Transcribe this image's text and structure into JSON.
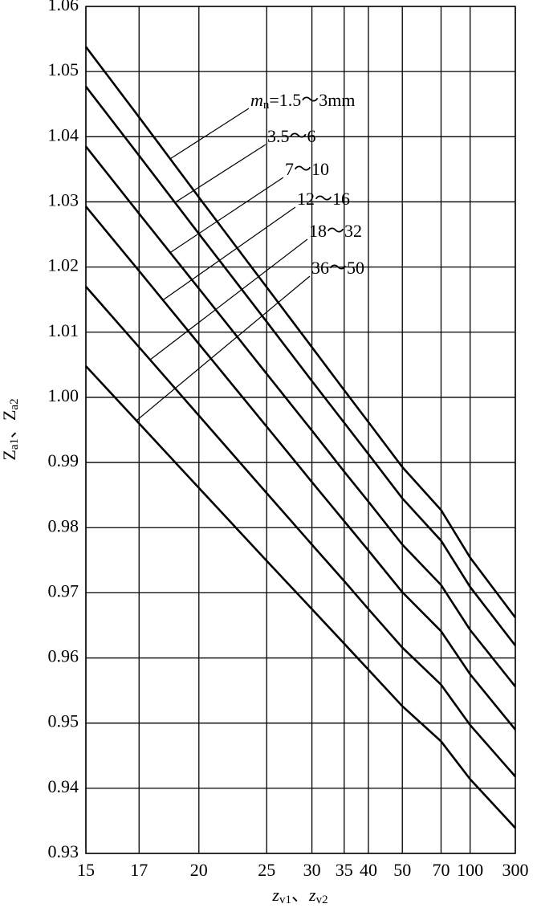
{
  "chart_data": {
    "type": "line",
    "x_scale": "reciprocal",
    "grid": true,
    "color": "#000000",
    "x": [
      15,
      17,
      20,
      25,
      30,
      35,
      40,
      50,
      70,
      100,
      300
    ],
    "xlim": [
      15,
      300
    ],
    "xticks": [
      15,
      17,
      20,
      25,
      30,
      35,
      40,
      50,
      70,
      100,
      300
    ],
    "ylim": [
      0.93,
      1.06
    ],
    "yticks": [
      0.93,
      0.94,
      0.95,
      0.96,
      0.97,
      0.98,
      0.99,
      {
        "value": 1,
        "label": "1.00"
      },
      1.01,
      1.02,
      1.03,
      1.04,
      1.05,
      1.06
    ],
    "x_label": [
      {
        "text": "z",
        "sub": false
      },
      {
        "text": "v1",
        "sub": true
      },
      {
        "text": "、",
        "sub": false
      },
      {
        "text": "z",
        "sub": false
      },
      {
        "text": "v2",
        "sub": true
      }
    ],
    "y_label": [
      {
        "text": "Z",
        "sub": false
      },
      {
        "text": "a1",
        "sub": true
      },
      {
        "text": "、",
        "sub": false
      },
      {
        "text": "Z",
        "sub": false
      },
      {
        "text": "a2",
        "sub": true
      }
    ],
    "label_prefix": {
      "symbol": "m",
      "sub": "n"
    },
    "series": [
      {
        "name": "=1.5～3mm",
        "color": "#000000",
        "values": [
          1.0538,
          1.043,
          1.0307,
          1.0169,
          1.0077,
          1.0011,
          0.9962,
          0.9893,
          0.9827,
          0.9754,
          0.9662
        ]
      },
      {
        "name": "3.5～6",
        "color": "#000000",
        "values": [
          1.0477,
          1.0371,
          1.0251,
          1.0116,
          1.0025,
          0.9961,
          0.9913,
          0.9845,
          0.978,
          0.9709,
          0.9619
        ]
      },
      {
        "name": "7～10",
        "color": "#000000",
        "values": [
          1.0385,
          1.0282,
          1.0167,
          1.0036,
          0.9949,
          0.9886,
          0.984,
          0.9774,
          0.9712,
          0.9643,
          0.9556
        ]
      },
      {
        "name": "12～16",
        "color": "#000000",
        "values": [
          1.0293,
          1.0194,
          1.0082,
          0.9955,
          0.987,
          0.981,
          0.9765,
          0.9701,
          0.9641,
          0.9575,
          0.949
        ]
      },
      {
        "name": "18～32",
        "color": "#000000",
        "values": [
          1.017,
          1.0077,
          0.9972,
          0.9853,
          0.9774,
          0.9718,
          0.9675,
          0.9616,
          0.9559,
          0.9497,
          0.9418
        ]
      },
      {
        "name": "36～50",
        "color": "#000000",
        "values": [
          1.0048,
          0.996,
          0.9861,
          0.9749,
          0.9675,
          0.9622,
          0.9582,
          0.9526,
          0.9472,
          0.9414,
          0.9339
        ]
      }
    ]
  }
}
